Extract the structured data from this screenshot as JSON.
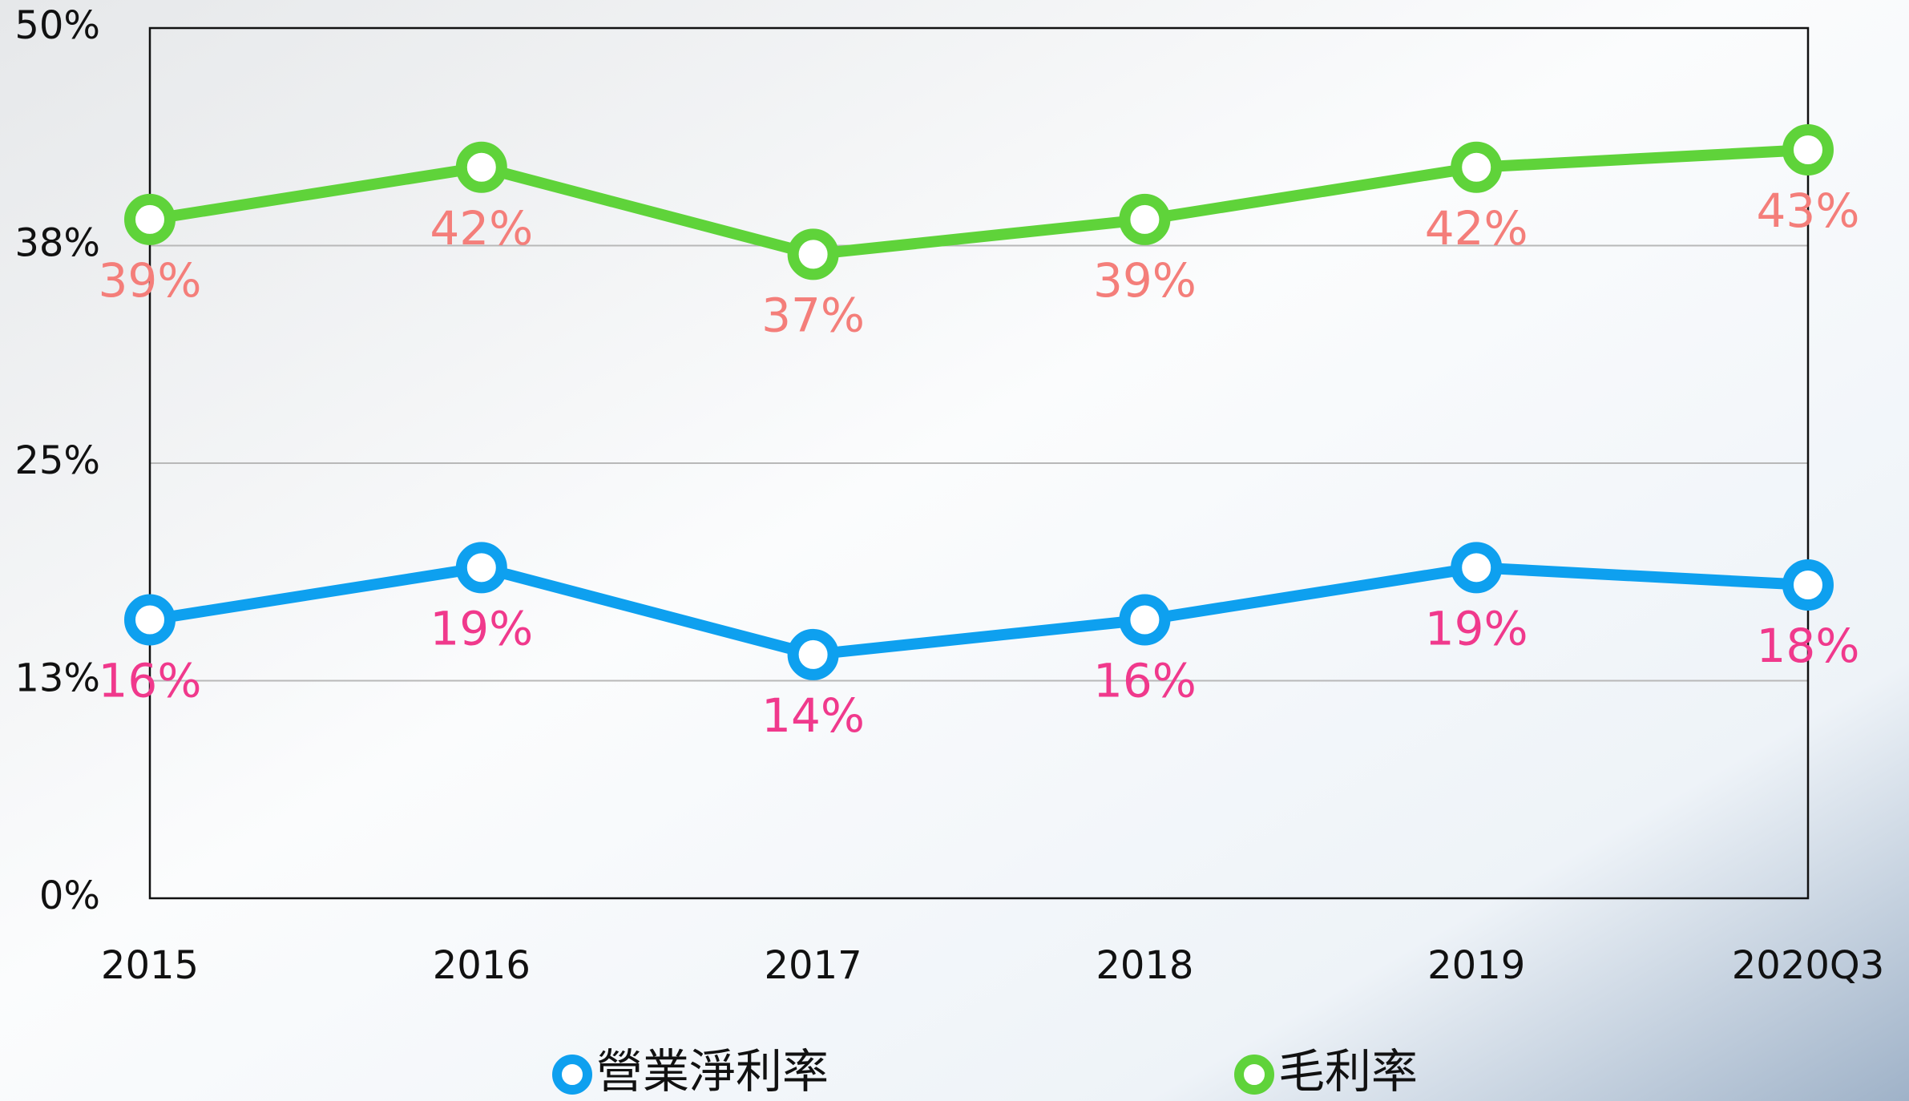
{
  "chart_data": {
    "type": "line",
    "categories": [
      "2015",
      "2016",
      "2017",
      "2018",
      "2019",
      "2020Q3"
    ],
    "series": [
      {
        "name": "營業淨利率",
        "color": "#0ea0ef",
        "label_color": "#f0398c",
        "values": [
          16,
          19,
          14,
          16,
          19,
          18
        ],
        "value_labels": [
          "16%",
          "19%",
          "14%",
          "16%",
          "19%",
          "18%"
        ]
      },
      {
        "name": "毛利率",
        "color": "#5fd33a",
        "label_color": "#f47e7a",
        "values": [
          39,
          42,
          37,
          39,
          42,
          43
        ],
        "value_labels": [
          "39%",
          "42%",
          "37%",
          "39%",
          "42%",
          "43%"
        ]
      }
    ],
    "ylim": [
      0,
      50
    ],
    "yticks": [
      {
        "value": 0,
        "label": "0%"
      },
      {
        "value": 12.5,
        "label": "13%"
      },
      {
        "value": 25,
        "label": "25%"
      },
      {
        "value": 37.5,
        "label": "38%"
      },
      {
        "value": 50,
        "label": "50%"
      }
    ],
    "grid": true,
    "legend": "bottom"
  }
}
